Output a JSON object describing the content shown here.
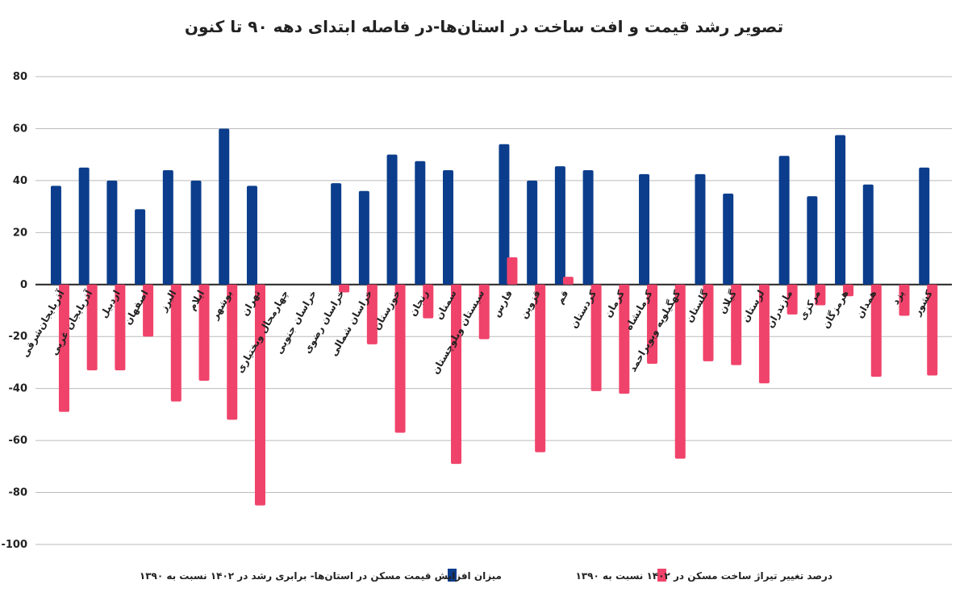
{
  "chart_data": {
    "type": "bar",
    "title": "تصویر رشد قیمت و افت ساخت در استان‌ها-در فاصله ابتدای دهه ۹۰ تا کنون",
    "categories": [
      "آذربایجان‌شرقی",
      "آذربایجان غربی",
      "اردبیل",
      "اصفهان",
      "البرز",
      "ایلام",
      "بوشهر",
      "تهران",
      "چهارمحال وبختیاری",
      "خراسان جنوبی",
      "خراسان رضوی",
      "خراسان شمالی",
      "خوزستان",
      "زنجان",
      "سمنان",
      "سیستان وبلوچستان",
      "فارس",
      "قزوین",
      "قم",
      "کردستان",
      "کرمان",
      "کرمانشاه",
      "کهگیلویه وبویراحمد",
      "گلستان",
      "گیلان",
      "لرستان",
      "مازندران",
      "مرکزی",
      "هرمزگان",
      "همدان",
      "یزد",
      "کشور"
    ],
    "series": [
      {
        "name": "میزان افزایش قیمت مسکن در استان‌ها- برابری رشد در ۱۴۰۲ نسبت به ۱۳۹۰",
        "color": "#0b3d8c",
        "values": [
          38,
          45,
          40,
          29,
          44,
          40,
          60,
          38,
          null,
          null,
          39,
          36,
          50,
          47.5,
          44,
          null,
          54,
          40,
          45.5,
          44,
          null,
          42.5,
          null,
          42.5,
          35,
          null,
          49.5,
          34,
          57.5,
          38.5,
          null,
          45
        ]
      },
      {
        "name": "درصد تغییر تیراژ ساخت مسکن در ۱۴۰۲ نسبت به ۱۳۹۰",
        "color": "#f0436b",
        "values": [
          -49,
          -33,
          -33,
          -20,
          -45,
          -37,
          -52,
          -85,
          null,
          null,
          -3,
          -23,
          -57,
          -13,
          -69,
          -21,
          10.5,
          -64.5,
          3,
          -41,
          -42,
          -30.5,
          -67,
          -29.5,
          -31,
          -38,
          -11.5,
          -8,
          -4.5,
          -35.5,
          -12,
          -35
        ]
      }
    ],
    "ylim": [
      -100,
      80
    ],
    "yticks": [
      80,
      60,
      40,
      20,
      0,
      -20,
      -40,
      -60,
      -80,
      -100
    ],
    "grid": true
  }
}
